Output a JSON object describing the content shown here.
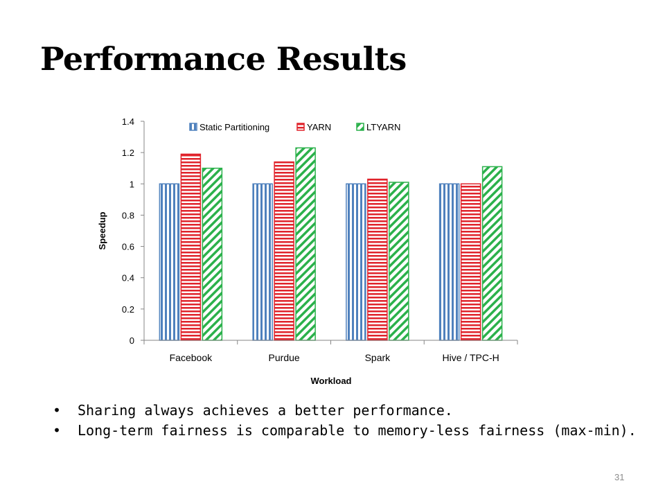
{
  "slide": {
    "title": "Performance Results",
    "bullets": [
      "Sharing always achieves a better performance.",
      "Long-term fairness is comparable to memory-less fairness (max-min)."
    ],
    "page_number": "31"
  },
  "chart_data": {
    "type": "bar",
    "title": "",
    "xlabel": "Workload",
    "ylabel": "Speedup",
    "categories": [
      "Facebook",
      "Purdue",
      "Spark",
      "Hive / TPC-H"
    ],
    "series": [
      {
        "name": "Static Partitioning",
        "values": [
          1.0,
          1.0,
          1.0,
          1.0
        ],
        "color": "#4f81bd",
        "pattern": "vertical-stripes"
      },
      {
        "name": "YARN",
        "values": [
          1.19,
          1.14,
          1.03,
          1.0
        ],
        "color": "#e0232b",
        "pattern": "horizontal-stripes"
      },
      {
        "name": "LTYARN",
        "values": [
          1.1,
          1.23,
          1.01,
          1.11
        ],
        "color": "#2bb14b",
        "pattern": "diagonal-stripes"
      }
    ],
    "ylim": [
      0,
      1.4
    ],
    "yticks": [
      "0",
      "0.2",
      "0.4",
      "0.6",
      "0.8",
      "1",
      "1.2",
      "1.4"
    ],
    "grid": false,
    "legend_position": "top"
  }
}
